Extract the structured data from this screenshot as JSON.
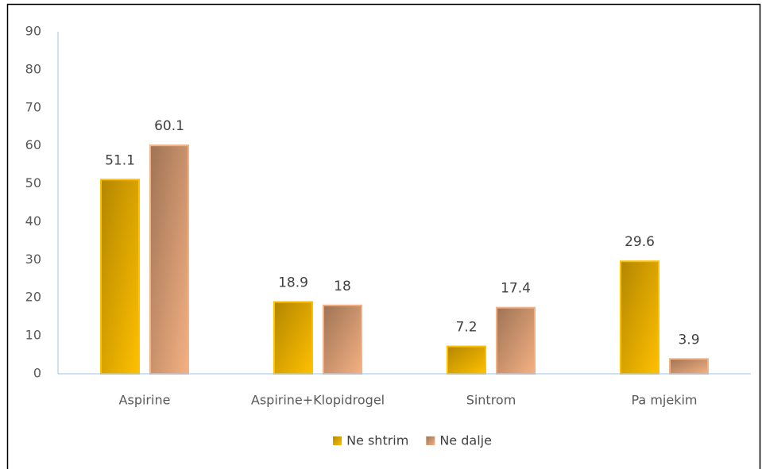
{
  "chart_data": {
    "type": "bar",
    "categories": [
      "Aspirine",
      "Aspirine+Klopidrogel",
      "Sintrom",
      "Pa mjekim"
    ],
    "series": [
      {
        "name": "Ne shtrim",
        "color": "#ffc000",
        "values": [
          51.1,
          18.9,
          7.2,
          29.6
        ]
      },
      {
        "name": "Ne dalje",
        "color": "#f4b183",
        "values": [
          60.1,
          18,
          17.4,
          3.9
        ]
      }
    ],
    "ylim": [
      0,
      90
    ],
    "yticks": [
      0,
      10,
      20,
      30,
      40,
      50,
      60,
      70,
      80,
      90
    ],
    "grid": false,
    "legend": "bottom"
  }
}
